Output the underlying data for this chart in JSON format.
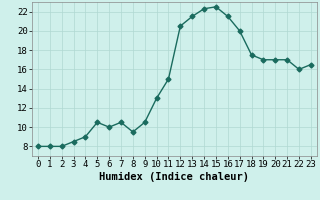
{
  "x": [
    0,
    1,
    2,
    3,
    4,
    5,
    6,
    7,
    8,
    9,
    10,
    11,
    12,
    13,
    14,
    15,
    16,
    17,
    18,
    19,
    20,
    21,
    22,
    23
  ],
  "y": [
    8,
    8,
    8,
    8.5,
    9,
    10.5,
    10,
    10.5,
    9.5,
    10.5,
    13,
    15,
    20.5,
    21.5,
    22.3,
    22.5,
    21.5,
    20,
    17.5,
    17,
    17,
    17,
    16,
    16.5
  ],
  "line_color": "#1a6b5e",
  "marker": "D",
  "marker_size": 2.5,
  "bg_color": "#cff0eb",
  "grid_color": "#b0d9d2",
  "xlabel": "Humidex (Indice chaleur)",
  "xlim": [
    -0.5,
    23.5
  ],
  "ylim": [
    7,
    23
  ],
  "yticks": [
    8,
    10,
    12,
    14,
    16,
    18,
    20,
    22
  ],
  "xticks": [
    0,
    1,
    2,
    3,
    4,
    5,
    6,
    7,
    8,
    9,
    10,
    11,
    12,
    13,
    14,
    15,
    16,
    17,
    18,
    19,
    20,
    21,
    22,
    23
  ],
  "xlabel_fontsize": 7.5,
  "tick_fontsize": 6.5,
  "line_width": 1.0
}
